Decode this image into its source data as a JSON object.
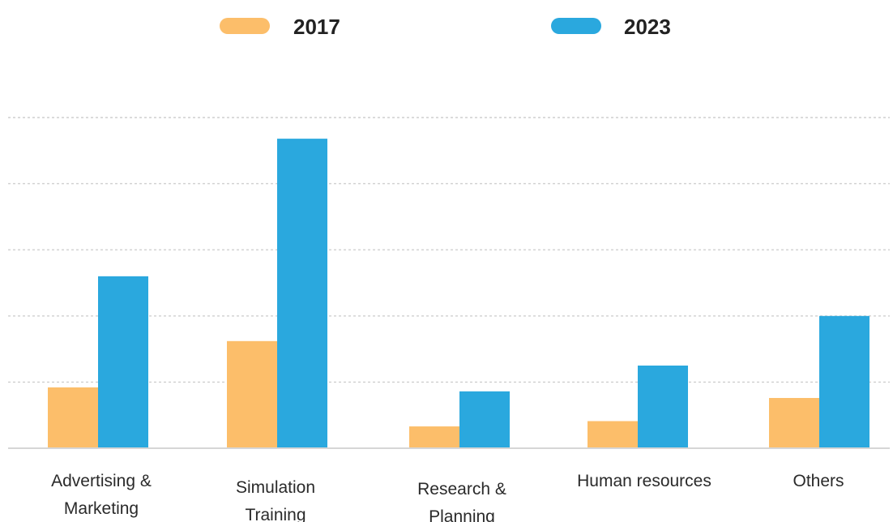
{
  "chart_data": {
    "type": "bar",
    "title": "",
    "xlabel": "",
    "ylabel": "",
    "categories": [
      [
        "Advertising &",
        "Marketing"
      ],
      [
        "Simulation",
        "Training"
      ],
      [
        "Research &",
        "Planning"
      ],
      [
        "Human resources"
      ],
      [
        "Others"
      ]
    ],
    "series": [
      {
        "name": "2017",
        "color": "#FCBE6A",
        "values": [
          0.92,
          1.62,
          0.33,
          0.41,
          0.76
        ]
      },
      {
        "name": "2023",
        "color": "#2AA8DE",
        "values": [
          2.6,
          4.68,
          0.86,
          1.25,
          2.0
        ]
      }
    ],
    "ylim": [
      0,
      5
    ],
    "grid": true,
    "grid_style": "dotted",
    "y_tick_labels_shown": false,
    "legend_position": "top-center",
    "axis_color": "#d6d6d6",
    "grid_color": "#cfcfcf"
  }
}
